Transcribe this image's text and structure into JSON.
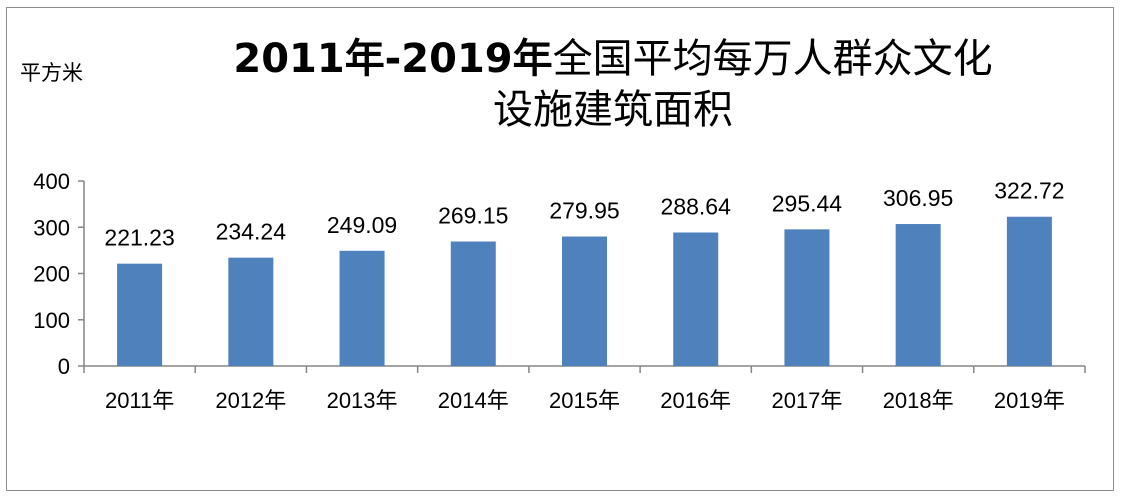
{
  "chart_data": {
    "type": "bar",
    "title_line1_bold": "2011年-2019年",
    "title_line1_rest": "全国平均每万人群众文化",
    "title_line2": "设施建筑面积",
    "ylabel": "平方米",
    "xlabel": "",
    "categories": [
      "2011年",
      "2012年",
      "2013年",
      "2014年",
      "2015年",
      "2016年",
      "2017年",
      "2018年",
      "2019年"
    ],
    "values": [
      221.23,
      234.24,
      249.09,
      269.15,
      279.95,
      288.64,
      295.44,
      306.95,
      322.72
    ],
    "data_labels": [
      "221.23",
      "234.24",
      "249.09",
      "269.15",
      "279.95",
      "288.64",
      "295.44",
      "306.95",
      "322.72"
    ],
    "ylim": [
      0,
      400
    ],
    "yticks": [
      0,
      100,
      200,
      300,
      400
    ],
    "ytick_labels": [
      "0",
      "100",
      "200",
      "300",
      "400"
    ],
    "bar_color": "#4f81bd",
    "grid": false,
    "legend": "none"
  }
}
